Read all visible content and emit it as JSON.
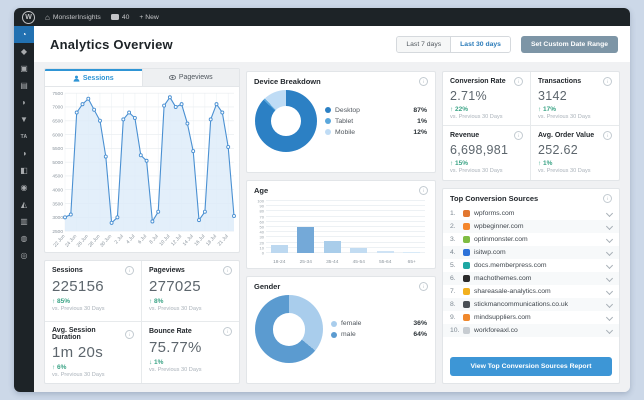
{
  "admin_bar": {
    "wp_logo": "W",
    "home_glyph": "⌂",
    "site_name": "MonsterInsights",
    "comments_count": "40",
    "new_label": "+ New"
  },
  "sidebar": {
    "items": [
      {
        "name": "dashboard",
        "glyph": "◔",
        "active": true
      },
      {
        "name": "posts",
        "glyph": "◆",
        "active": false
      },
      {
        "name": "media",
        "glyph": "▣",
        "active": false
      },
      {
        "name": "pages",
        "glyph": "▤",
        "active": false
      },
      {
        "name": "comments",
        "glyph": "◗",
        "active": false
      },
      {
        "name": "feedback",
        "glyph": "▼",
        "active": false
      },
      {
        "name": "ta-plugin",
        "glyph": "TA",
        "active": false
      },
      {
        "name": "appearance",
        "glyph": "◑",
        "active": false
      },
      {
        "name": "plugins",
        "glyph": "◧",
        "active": false
      },
      {
        "name": "users",
        "glyph": "◉",
        "active": false
      },
      {
        "name": "tools",
        "glyph": "◭",
        "active": false
      },
      {
        "name": "settings",
        "glyph": "▥",
        "active": false
      },
      {
        "name": "analytics",
        "glyph": "◍",
        "active": false
      },
      {
        "name": "collapse",
        "glyph": "◎",
        "active": false
      }
    ]
  },
  "header": {
    "title": "Analytics Overview",
    "range_buttons": [
      {
        "label": "Last 7 days",
        "active": false
      },
      {
        "label": "Last 30 days",
        "active": true
      }
    ],
    "custom_range_label": "Set Custom Date Range"
  },
  "tabs": [
    {
      "label": "Sessions",
      "icon": "person-icon",
      "active": true
    },
    {
      "label": "Pageviews",
      "icon": "eye-icon",
      "active": false
    }
  ],
  "chart_data": [
    {
      "id": "sessions_trend",
      "type": "line",
      "title": "Sessions",
      "x_tick_labels": [
        "22 Jun",
        "24 Jun",
        "26 Jun",
        "28 Jun",
        "30 Jun",
        "2 Jul",
        "4 Jul",
        "6 Jul",
        "8 Jul",
        "10 Jul",
        "12 Jul",
        "14 Jul",
        "16 Jul",
        "18 Jul",
        "21 Jul"
      ],
      "values": [
        3000,
        3100,
        6800,
        7100,
        7300,
        6900,
        6500,
        5200,
        2800,
        3000,
        6550,
        6800,
        6600,
        5250,
        5050,
        2850,
        3200,
        7050,
        7350,
        7000,
        7100,
        6400,
        5400,
        2900,
        3200,
        6550,
        7100,
        6800,
        5550,
        3050
      ],
      "ylim": [
        2500,
        7500
      ],
      "ytick_step": 500,
      "grid": true,
      "legend_position": "none",
      "line_color": "#4a90d2",
      "fill_color": "#dcebf9"
    },
    {
      "id": "device_breakdown",
      "type": "pie",
      "title": "Device Breakdown",
      "labels": [
        "Desktop",
        "Tablet",
        "Mobile"
      ],
      "values": [
        87,
        1,
        12
      ],
      "value_labels": [
        "87%",
        "1%",
        "12%"
      ],
      "colors": [
        "#2c80c4",
        "#5aa7dc",
        "#bfdcf5"
      ],
      "legend_position": "right"
    },
    {
      "id": "age",
      "type": "bar",
      "title": "Age",
      "categories": [
        "18-24",
        "25-34",
        "35-44",
        "45-54",
        "55-64",
        "65+"
      ],
      "values": [
        15,
        50,
        22,
        9,
        4,
        1
      ],
      "ylim": [
        0,
        100
      ],
      "ytick_step": 10,
      "grid": true,
      "bar_colors": [
        "#bcd8f0",
        "#74a9d8",
        "#a9cdea",
        "#c2dcf2",
        "#cfe3f5",
        "#d8eaf8"
      ]
    },
    {
      "id": "gender",
      "type": "pie",
      "title": "Gender",
      "labels": [
        "female",
        "male"
      ],
      "values": [
        36,
        64
      ],
      "value_labels": [
        "36%",
        "64%"
      ],
      "colors": [
        "#a9cdec",
        "#5b9bd0"
      ],
      "legend_position": "right"
    }
  ],
  "stats": {
    "left": [
      {
        "label": "Sessions",
        "value": "225156",
        "direction": "up",
        "delta": "85%",
        "sub": "vs. Previous 30 Days"
      },
      {
        "label": "Pageviews",
        "value": "277025",
        "direction": "up",
        "delta": "8%",
        "sub": "vs. Previous 30 Days"
      },
      {
        "label": "Avg. Session Duration",
        "value": "1m 20s",
        "direction": "up",
        "delta": "6%",
        "sub": "vs. Previous 30 Days"
      },
      {
        "label": "Bounce Rate",
        "value": "75.77%",
        "direction": "down",
        "delta": "1%",
        "sub": "vs. Previous 30 Days"
      }
    ],
    "right": [
      {
        "label": "Conversion Rate",
        "value": "2.71%",
        "direction": "up",
        "delta": "22%",
        "sub": "vs. Previous 30 Days"
      },
      {
        "label": "Transactions",
        "value": "3142",
        "direction": "up",
        "delta": "17%",
        "sub": "vs. Previous 30 Days"
      },
      {
        "label": "Revenue",
        "value": "6,698,981",
        "direction": "up",
        "delta": "15%",
        "sub": "vs. Previous 30 Days"
      },
      {
        "label": "Avg. Order Value",
        "value": "252.62",
        "direction": "up",
        "delta": "1%",
        "sub": "vs. Previous 30 Days"
      }
    ]
  },
  "top_sources": {
    "title": "Top Conversion Sources",
    "items": [
      {
        "rank": "1.",
        "domain": "wpforms.com",
        "color": "#e27730"
      },
      {
        "rank": "2.",
        "domain": "wpbeginner.com",
        "color": "#f4862c"
      },
      {
        "rank": "3.",
        "domain": "optinmonster.com",
        "color": "#7fbc42"
      },
      {
        "rank": "4.",
        "domain": "isitwp.com",
        "color": "#2d72d9"
      },
      {
        "rank": "5.",
        "domain": "docs.memberpress.com",
        "color": "#1da7a3"
      },
      {
        "rank": "6.",
        "domain": "machothemes.com",
        "color": "#2b2b2b"
      },
      {
        "rank": "7.",
        "domain": "shareasale-analytics.com",
        "color": "#f2b01e"
      },
      {
        "rank": "8.",
        "domain": "stickmancommunications.co.uk",
        "color": "#4a4f55"
      },
      {
        "rank": "9.",
        "domain": "mindsuppliers.com",
        "color": "#f0882c"
      },
      {
        "rank": "10.",
        "domain": "workforeaxl.co",
        "color": "#c7ccd1"
      }
    ],
    "button_label": "View Top Conversion Sources Report"
  },
  "icons": {
    "info_glyph": "i"
  },
  "colors": {
    "accent_blue": "#3d96d6",
    "delta_green": "#3aa385",
    "slate_button": "#7d95a6",
    "admin_dark": "#1d2327",
    "sidebar_active": "#2271b1",
    "page_bg": "#f0f1f3"
  }
}
